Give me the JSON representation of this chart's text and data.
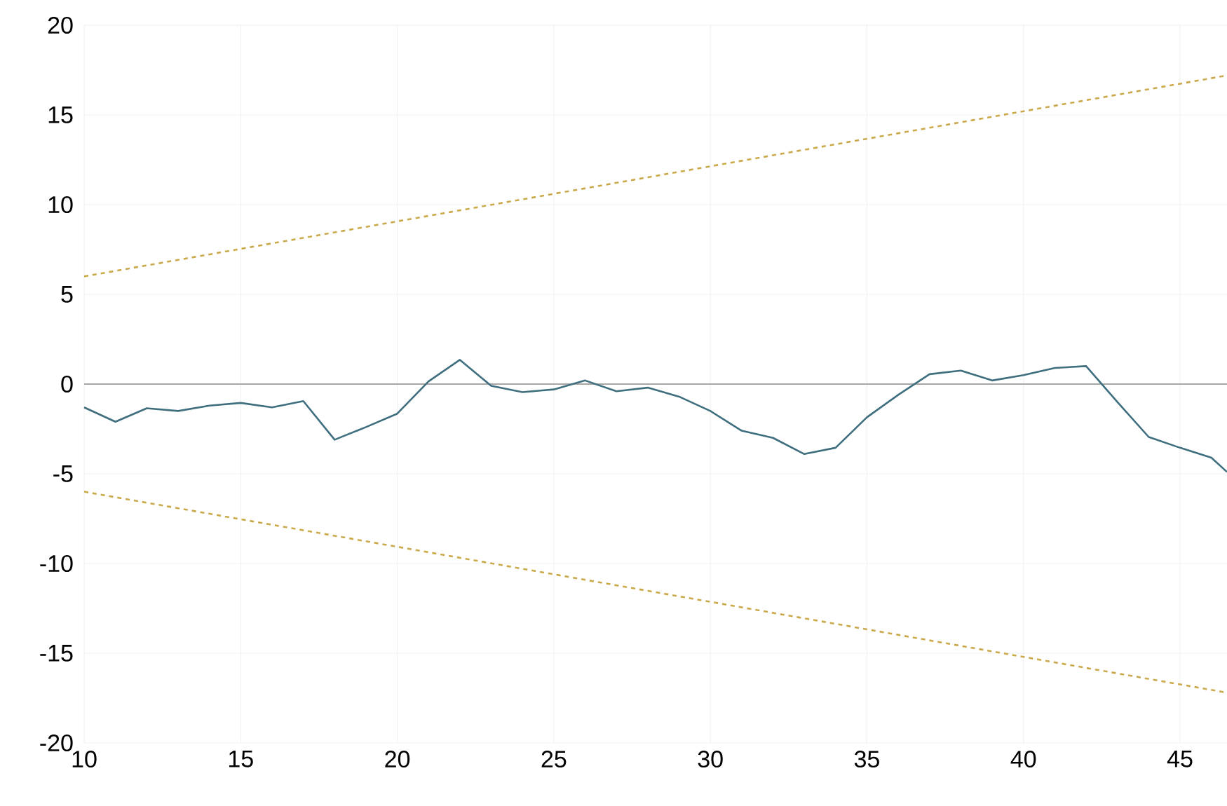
{
  "chart_data": {
    "type": "line",
    "xlim": [
      10,
      46.5
    ],
    "ylim": [
      -20,
      20
    ],
    "xticks": [
      10,
      15,
      20,
      25,
      30,
      35,
      40,
      45
    ],
    "yticks": [
      -20,
      -15,
      -10,
      -5,
      0,
      5,
      10,
      15,
      20
    ],
    "grid": true,
    "marker": "none",
    "ref_lines": [
      {
        "axis": "y",
        "value": 0,
        "color": "#a6a6a6"
      }
    ],
    "series": [
      {
        "color": "#3f6f7f",
        "line_style": "solid",
        "x": [
          10,
          11,
          12,
          13,
          14,
          15,
          16,
          17,
          18,
          19,
          20,
          21,
          22,
          23,
          24,
          25,
          26,
          27,
          28,
          29,
          30,
          31,
          32,
          33,
          34,
          35,
          36,
          37,
          38,
          39,
          40,
          41,
          42,
          43,
          44,
          45,
          46,
          46.5
        ],
        "values": [
          -1.3,
          -2.1,
          -1.35,
          -1.5,
          -1.2,
          -1.05,
          -1.3,
          -0.95,
          -3.1,
          -2.4,
          -1.65,
          0.15,
          1.35,
          -0.1,
          -0.45,
          -0.3,
          0.2,
          -0.4,
          -0.2,
          -0.7,
          -1.5,
          -2.6,
          -3.0,
          -3.9,
          -3.55,
          -1.85,
          -0.6,
          0.55,
          0.75,
          0.2,
          0.5,
          0.9,
          1.0,
          -1.0,
          -2.95,
          -3.55,
          -4.1,
          -4.9
        ]
      },
      {
        "color": "#c9a94a",
        "line_style": "dashed",
        "x": [
          10,
          46.5
        ],
        "values": [
          6,
          17.2
        ]
      },
      {
        "color": "#c9a94a",
        "line_style": "dashed",
        "x": [
          10,
          46.5
        ],
        "values": [
          -6,
          -17.2
        ]
      }
    ]
  }
}
